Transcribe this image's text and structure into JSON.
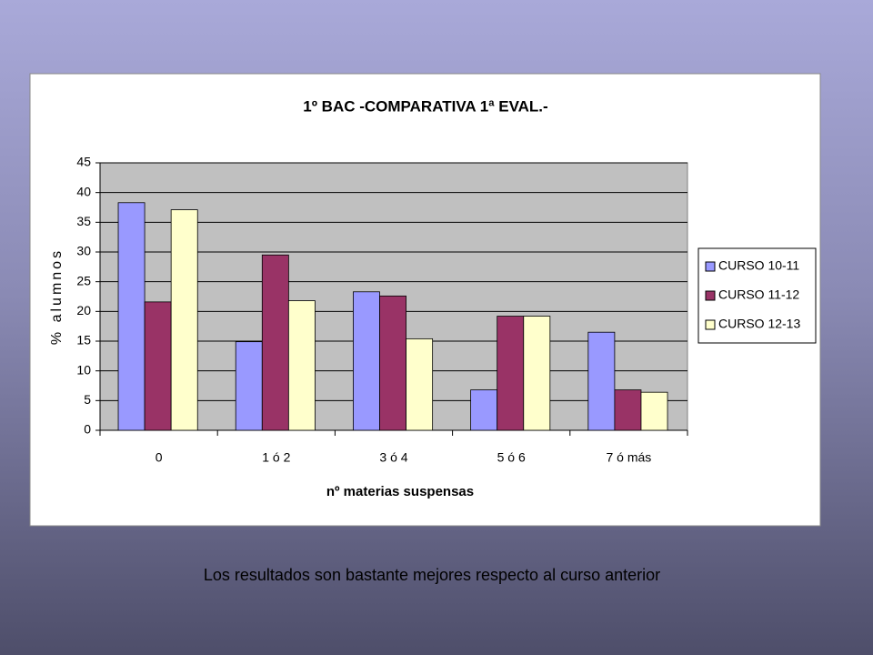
{
  "chart_data": {
    "type": "bar",
    "title": "1º BAC -COMPARATIVA 1ª EVAL.-",
    "x_label": "nº materias suspensas",
    "y_label": "% alumnos",
    "categories": [
      "0",
      "1 ó 2",
      "3 ó 4",
      "5 ó 6",
      "7 ó más"
    ],
    "series": [
      {
        "name": "CURSO 10-11",
        "color": "#9999ff",
        "values": [
          38.3,
          14.9,
          23.3,
          6.8,
          16.5
        ]
      },
      {
        "name": "CURSO 11-12",
        "color": "#993366",
        "values": [
          21.6,
          29.5,
          22.6,
          19.2,
          6.8
        ]
      },
      {
        "name": "CURSO 12-13",
        "color": "#ffffcc",
        "values": [
          37.1,
          21.8,
          15.4,
          19.2,
          6.4
        ]
      }
    ],
    "ylim": [
      0,
      45
    ],
    "yticks": [
      0,
      5,
      10,
      15,
      20,
      25,
      30,
      35,
      40,
      45
    ],
    "grid": true,
    "legend": "right",
    "plot_background": "#c0c0c0"
  },
  "caption": "Los resultados son bastante mejores respecto al curso anterior"
}
